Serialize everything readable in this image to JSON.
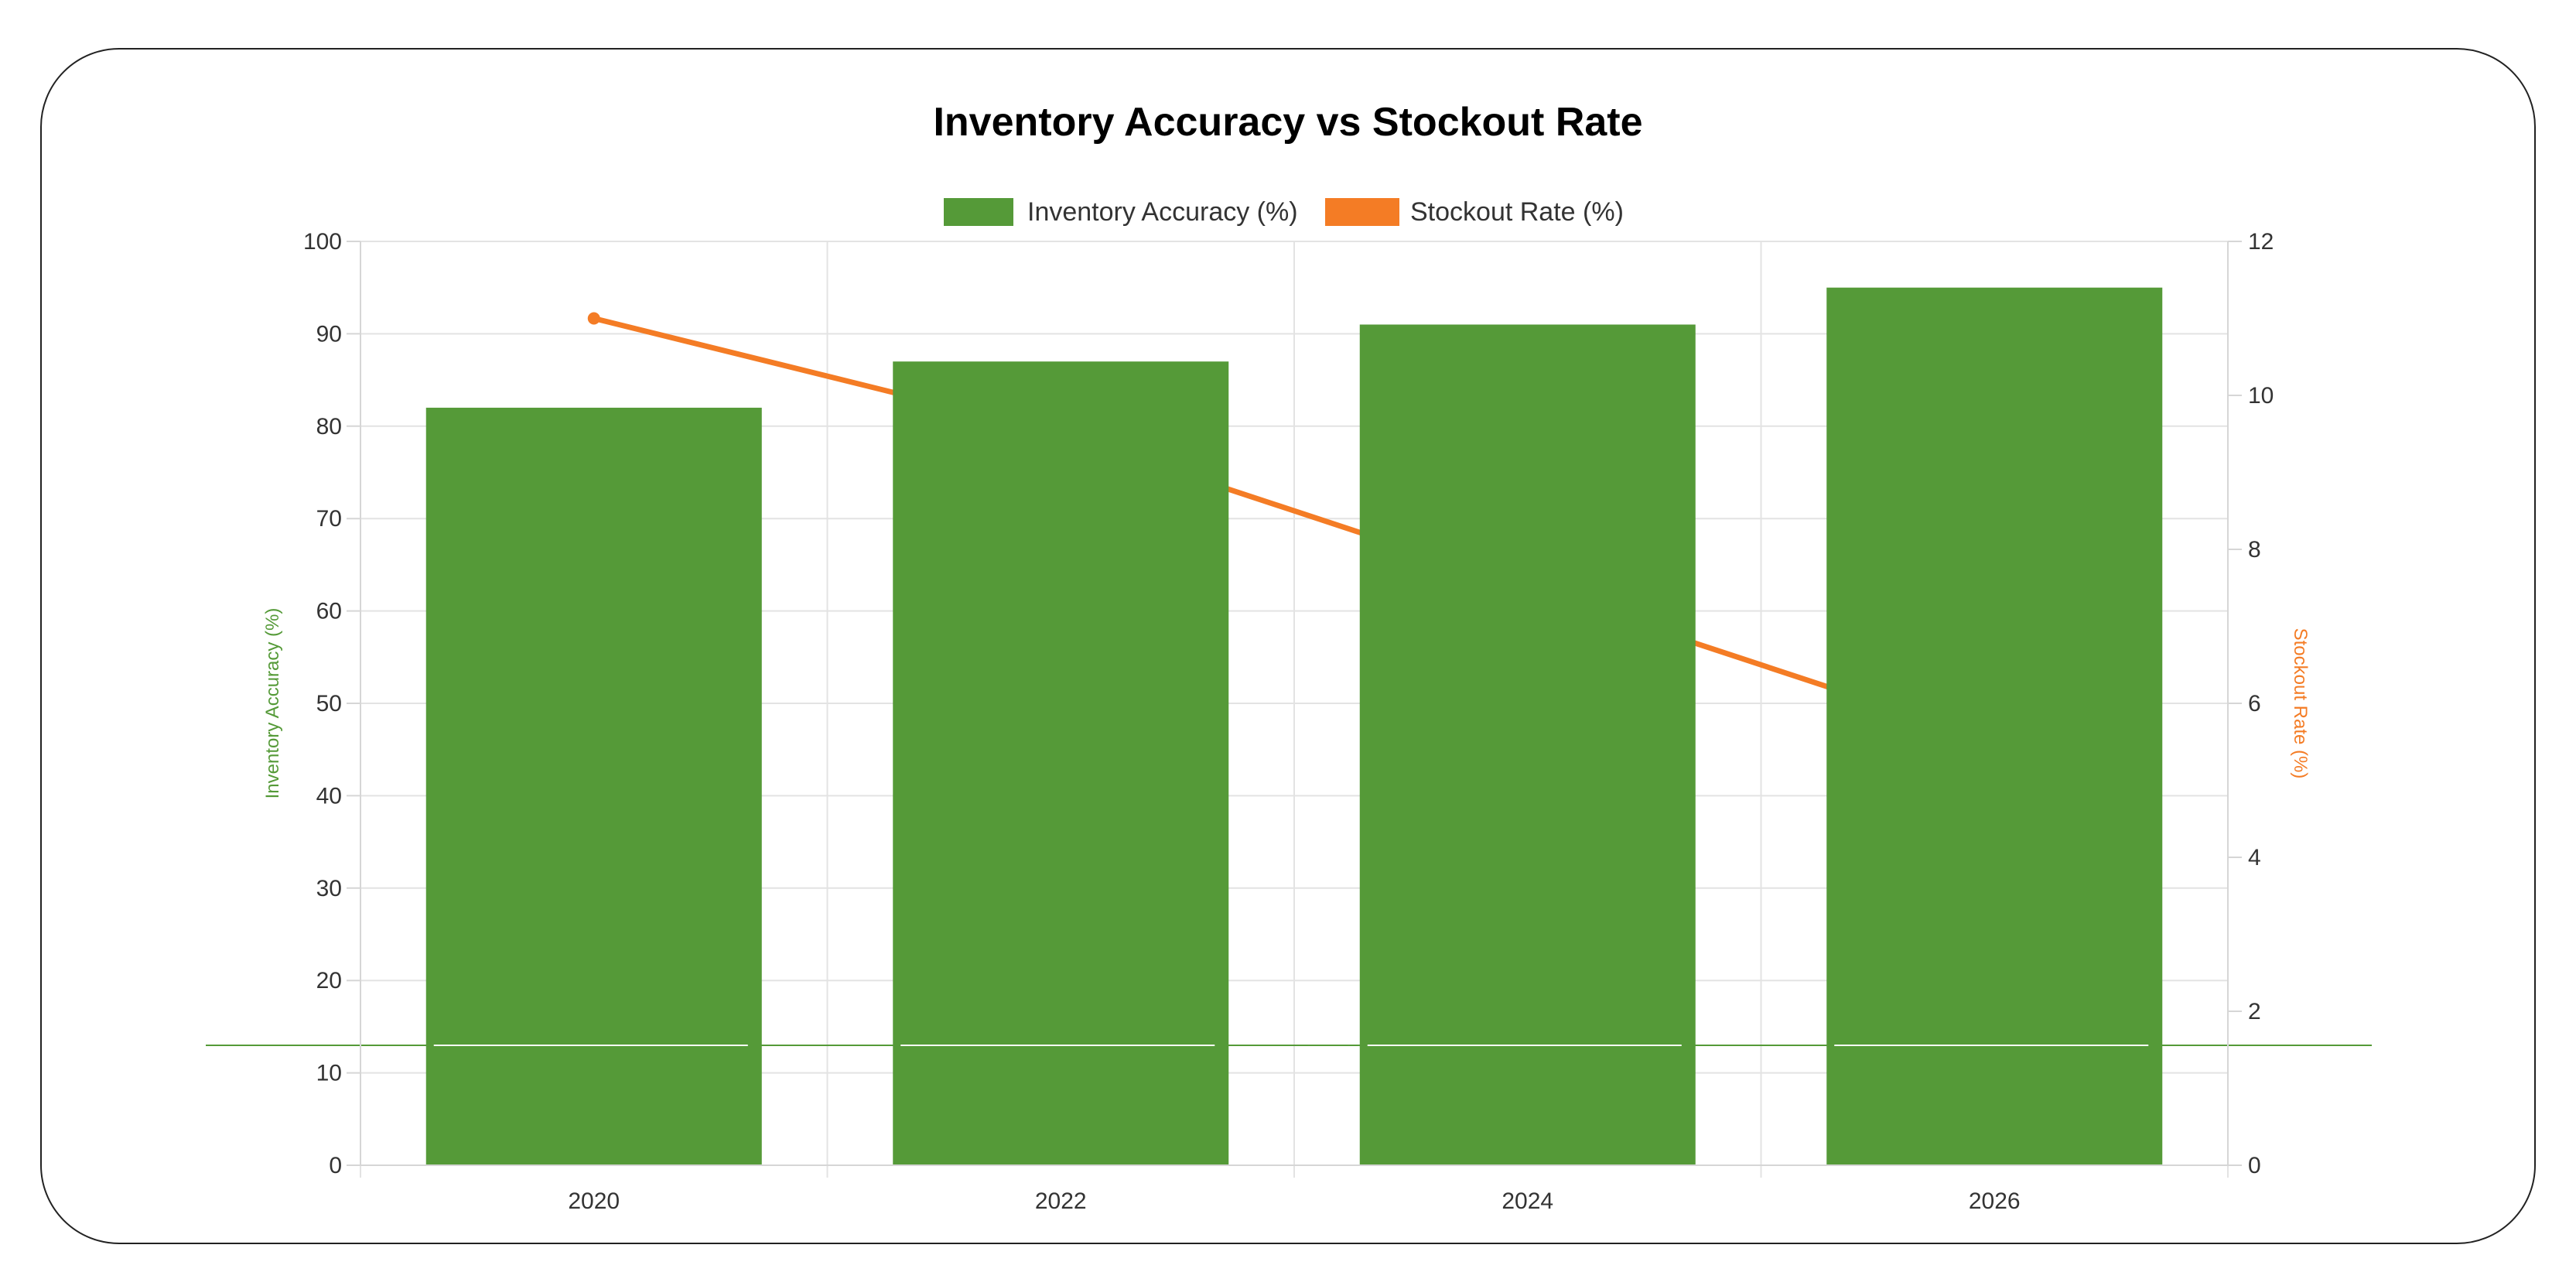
{
  "chart_data": {
    "type": "bar",
    "title": "Inventory Accuracy vs Stockout Rate",
    "categories": [
      "2020",
      "2022",
      "2024",
      "2026"
    ],
    "series": [
      {
        "name": "Inventory Accuracy (%)",
        "type": "bar",
        "axis": "left",
        "color": "#559a38",
        "values": [
          82,
          87,
          91,
          95
        ]
      },
      {
        "name": "Stockout Rate (%)",
        "type": "line",
        "axis": "right",
        "color": "#f47c25",
        "values": [
          11,
          9.5,
          7.5,
          5.5
        ]
      }
    ],
    "y_left": {
      "label": "Inventory Accuracy (%)",
      "range": [
        0,
        100
      ],
      "ticks": [
        "0",
        "10",
        "20",
        "30",
        "40",
        "50",
        "60",
        "70",
        "80",
        "90",
        "100"
      ],
      "color": "#559a38"
    },
    "y_right": {
      "label": "Stockout Rate (%)",
      "range": [
        0,
        12
      ],
      "ticks": [
        "0",
        "2",
        "4",
        "6",
        "8",
        "10",
        "12"
      ],
      "color": "#f47c25"
    },
    "grid": true,
    "legend_position": "top-center"
  }
}
